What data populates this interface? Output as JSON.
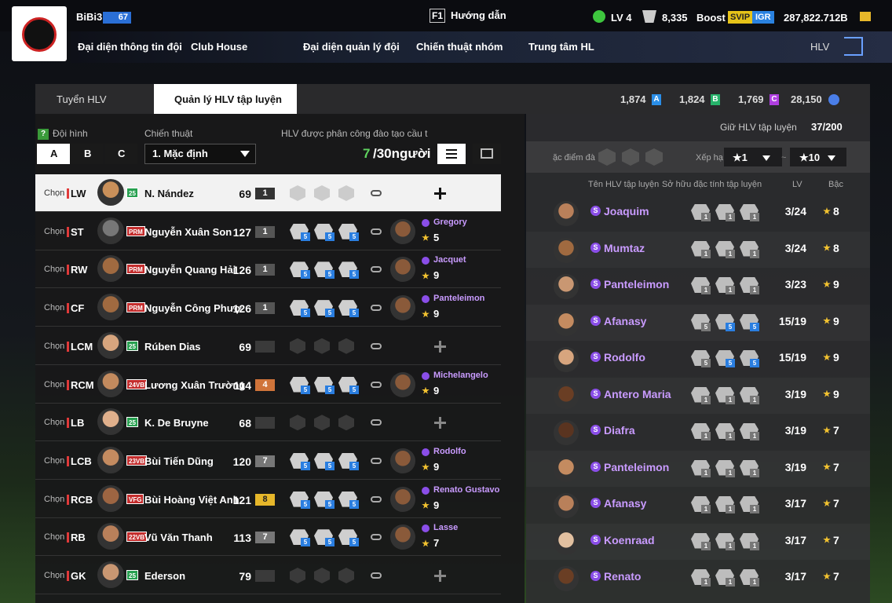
{
  "header": {
    "team_name": "BiBi3",
    "team_level": "67",
    "help_key": "F1",
    "help": "Hướng dẫn",
    "lv": "LV 4",
    "tokens": "8,335",
    "boost": "Boost",
    "svip": "SVIP",
    "igr": "IGR",
    "balance": "287,822.712B"
  },
  "nav": [
    "Đại diện thông tin đội",
    "Club House",
    "Đại diện quản lý đội",
    "Chiến thuật nhóm",
    "Trung tâm HL"
  ],
  "nav_right": "HLV",
  "tabs": [
    "Tuyển HLV",
    "Quản lý HLV tập luyện"
  ],
  "currencies": [
    {
      "amount": "1,874",
      "letter": "A"
    },
    {
      "amount": "1,824",
      "letter": "B"
    },
    {
      "amount": "1,769",
      "letter": "C"
    },
    {
      "amount": "28,150"
    }
  ],
  "squad": {
    "help_icon": "?",
    "formation_label": "Đội hình",
    "tactics_label": "Chiến thuật",
    "assigned_label": "HLV được phân công đào tạo cầu t",
    "formations": [
      "A",
      "B",
      "C"
    ],
    "tactic": "1. Mặc định",
    "assigned": "7",
    "capacity": "/30người",
    "rows": [
      {
        "select": "Chọn",
        "position": "LW",
        "badge": "25",
        "name": "N. Nández",
        "ovr": 69,
        "level": "1"
      },
      {
        "select": "Chọn",
        "position": "ST",
        "badge": "PRM",
        "name": "Nguyễn Xuân Son",
        "ovr": 127,
        "level": "1",
        "traits": [
          5,
          5,
          5
        ],
        "coach": "Gregory",
        "coach_stars": 5
      },
      {
        "select": "Chọn",
        "position": "RW",
        "badge": "PRM",
        "name": "Nguyễn Quang Hải",
        "ovr": 126,
        "level": "1",
        "traits": [
          5,
          5,
          5
        ],
        "coach": "Jacquet",
        "coach_stars": 9
      },
      {
        "select": "Chọn",
        "position": "CF",
        "badge": "PRM",
        "name": "Nguyễn Công Phượ",
        "ovr": 126,
        "level": "1",
        "traits": [
          5,
          5,
          5
        ],
        "coach": "Panteleimon",
        "coach_stars": 9
      },
      {
        "select": "Chọn",
        "position": "LCM",
        "badge": "25",
        "name": "Rúben Dias",
        "ovr": 69
      },
      {
        "select": "Chọn",
        "position": "RCM",
        "badge": "24VB",
        "name": "Lương Xuân Trường",
        "ovr": 114,
        "level": "4",
        "traits": [
          5,
          5,
          5
        ],
        "coach": "Michelangelo",
        "coach_stars": 9
      },
      {
        "select": "Chọn",
        "position": "LB",
        "badge": "25",
        "name": "K. De Bruyne",
        "ovr": 68
      },
      {
        "select": "Chọn",
        "position": "LCB",
        "badge": "23VB",
        "name": "Bùi Tiến Dũng",
        "ovr": 120,
        "level": "7",
        "traits": [
          5,
          5,
          5
        ],
        "coach": "Rodolfo",
        "coach_stars": 9
      },
      {
        "select": "Chọn",
        "position": "RCB",
        "badge": "VFG",
        "name": "Bùi Hoàng Việt Anh",
        "ovr": 121,
        "level": "8",
        "traits": [
          5,
          5,
          5
        ],
        "coach": "Renato Gustavo",
        "coach_stars": 9
      },
      {
        "select": "Chọn",
        "position": "RB",
        "badge": "22VB",
        "name": "Vũ Văn Thanh",
        "ovr": 113,
        "level": "7",
        "traits": [
          5,
          5,
          5
        ],
        "coach": "Lasse",
        "coach_stars": 7
      },
      {
        "select": "Chọn",
        "position": "GK",
        "badge": "25",
        "name": "Ederson",
        "ovr": 79
      }
    ]
  },
  "coaches": {
    "keep_label": "Giữ HLV tập luyện",
    "keep_count": "37/200",
    "trait_filter": "ặc điểm đà",
    "rank_label": "Xếp hạ",
    "rank_from": "★1",
    "rank_sep": "~",
    "rank_to": "★10",
    "columns": [
      "Tên HLV tập luyện",
      "Sở hữu đặc tính tập luyện",
      "LV",
      "Bậc"
    ],
    "tier": "S",
    "rows": [
      {
        "name": "Joaquim",
        "traits": [
          1,
          1,
          1
        ],
        "lv": "3/24",
        "grade": 8
      },
      {
        "name": "Mumtaz",
        "traits": [
          1,
          1,
          1
        ],
        "lv": "3/24",
        "grade": 8
      },
      {
        "name": "Panteleimon",
        "traits": [
          1,
          1,
          1
        ],
        "lv": "3/23",
        "grade": 9
      },
      {
        "name": "Afanasy",
        "traits": [
          5,
          5,
          5
        ],
        "lv": "15/19",
        "grade": 9
      },
      {
        "name": "Rodolfo",
        "traits": [
          5,
          5,
          5
        ],
        "lv": "15/19",
        "grade": 9
      },
      {
        "name": "Antero Maria",
        "traits": [
          1,
          1,
          1
        ],
        "lv": "3/19",
        "grade": 9
      },
      {
        "name": "Diafra",
        "traits": [
          1,
          1,
          1
        ],
        "lv": "3/19",
        "grade": 7
      },
      {
        "name": "Panteleimon",
        "traits": [
          1,
          1,
          1
        ],
        "lv": "3/19",
        "grade": 7
      },
      {
        "name": "Afanasy",
        "traits": [
          1,
          1,
          1
        ],
        "lv": "3/17",
        "grade": 7
      },
      {
        "name": "Koenraad",
        "traits": [
          1,
          1,
          1
        ],
        "lv": "3/17",
        "grade": 7
      },
      {
        "name": "Renato",
        "traits": [
          1,
          1,
          1
        ],
        "lv": "3/17",
        "grade": 7
      }
    ]
  }
}
